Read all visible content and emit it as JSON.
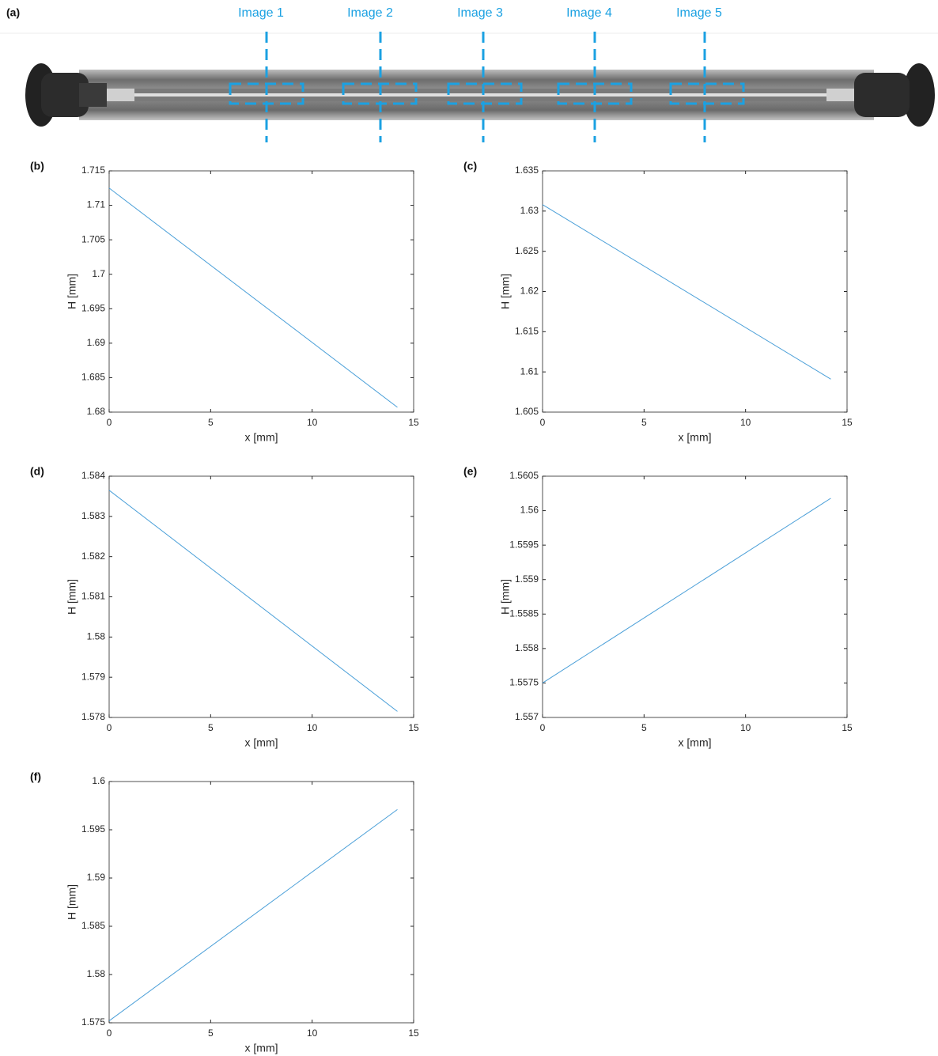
{
  "figure_label": "(a)",
  "image_labels": [
    "Image 1",
    "Image 2",
    "Image 3",
    "Image 4",
    "Image 5"
  ],
  "chart_data": [
    {
      "type": "line",
      "label": "(b)",
      "x_label": "x [mm]",
      "y_label": "H [mm]",
      "color": "#4a9fd8",
      "x": [
        0,
        14.2
      ],
      "values": [
        1.7125,
        1.6807
      ],
      "xlim": [
        0,
        15
      ],
      "xticks": [
        0,
        5,
        10,
        15
      ],
      "ylim": [
        1.68,
        1.715
      ],
      "yticks": [
        1.68,
        1.685,
        1.69,
        1.695,
        1.7,
        1.705,
        1.71,
        1.715
      ]
    },
    {
      "type": "line",
      "label": "(c)",
      "x_label": "x [mm]",
      "y_label": "H [mm]",
      "color": "#4a9fd8",
      "x": [
        0,
        14.2
      ],
      "values": [
        1.6308,
        1.6091
      ],
      "xlim": [
        0,
        15
      ],
      "xticks": [
        0,
        5,
        10,
        15
      ],
      "ylim": [
        1.605,
        1.635
      ],
      "yticks": [
        1.605,
        1.61,
        1.615,
        1.62,
        1.625,
        1.63,
        1.635
      ]
    },
    {
      "type": "line",
      "label": "(d)",
      "x_label": "x [mm]",
      "y_label": "H [mm]",
      "color": "#4a9fd8",
      "x": [
        0,
        14.2
      ],
      "values": [
        1.58365,
        1.57815
      ],
      "xlim": [
        0,
        15
      ],
      "xticks": [
        0,
        5,
        10,
        15
      ],
      "ylim": [
        1.578,
        1.584
      ],
      "yticks": [
        1.578,
        1.579,
        1.58,
        1.581,
        1.582,
        1.583,
        1.584
      ]
    },
    {
      "type": "line",
      "label": "(e)",
      "x_label": "x [mm]",
      "y_label": "H [mm]",
      "color": "#4a9fd8",
      "x": [
        0,
        14.2
      ],
      "values": [
        1.5575,
        1.56018
      ],
      "xlim": [
        0,
        15
      ],
      "xticks": [
        0,
        5,
        10,
        15
      ],
      "ylim": [
        1.557,
        1.5605
      ],
      "yticks": [
        1.557,
        1.5575,
        1.558,
        1.5585,
        1.559,
        1.5595,
        1.56,
        1.5605
      ]
    },
    {
      "type": "line",
      "label": "(f)",
      "x_label": "x [mm]",
      "y_label": "H [mm]",
      "color": "#4a9fd8",
      "x": [
        0,
        14.2
      ],
      "values": [
        1.5752,
        1.5971
      ],
      "xlim": [
        0,
        15
      ],
      "xticks": [
        0,
        5,
        10,
        15
      ],
      "ylim": [
        1.575,
        1.6
      ],
      "yticks": [
        1.575,
        1.58,
        1.585,
        1.59,
        1.595,
        1.6
      ]
    }
  ]
}
